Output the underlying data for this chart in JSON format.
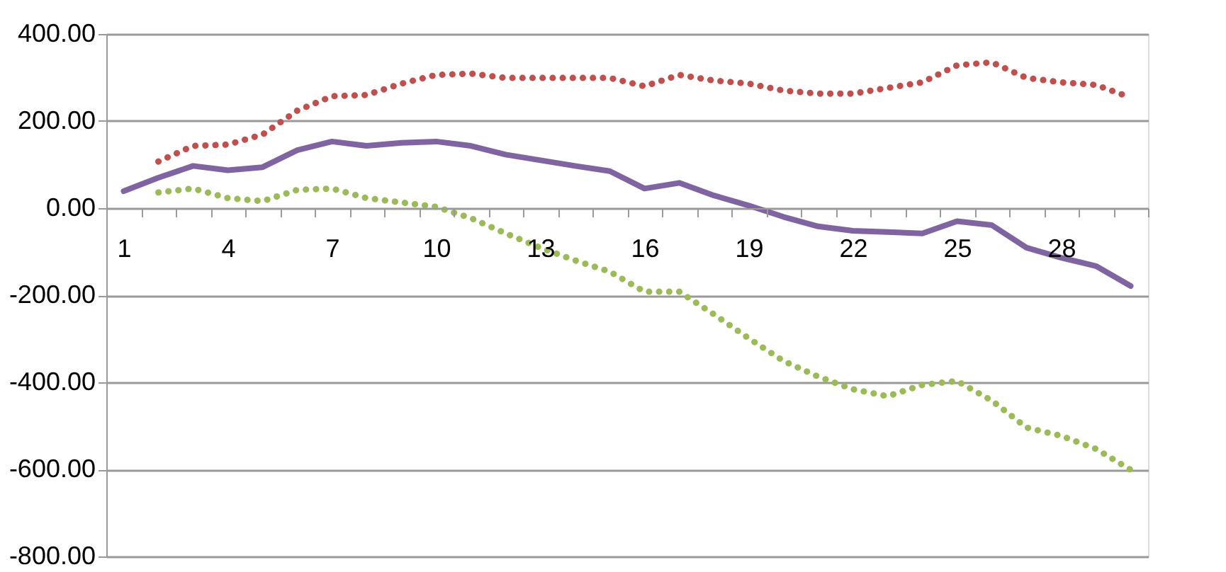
{
  "chart_data": {
    "type": "line",
    "categories": [
      "1",
      null,
      null,
      "4",
      null,
      null,
      "7",
      null,
      null,
      "10",
      null,
      null,
      "13",
      null,
      null,
      "16",
      null,
      null,
      "19",
      null,
      null,
      "22",
      null,
      null,
      "25",
      null,
      null,
      "28",
      null,
      null
    ],
    "series": [
      {
        "color": "#8064a2",
        "line_style": "solid",
        "values": [
          39,
          70,
          97,
          87,
          94,
          133,
          153,
          143,
          150,
          153,
          143,
          123,
          110,
          97,
          85,
          45,
          58,
          29,
          6,
          -20,
          -42,
          -52,
          -55,
          -58,
          -30,
          -39,
          -91,
          -114,
          -133,
          -179
        ]
      },
      {
        "color": "#c0504d",
        "line_style": "dotted",
        "values": [
          null,
          107,
          143,
          146,
          169,
          224,
          257,
          260,
          286,
          306,
          309,
          299,
          299,
          299,
          299,
          280,
          306,
          293,
          286,
          270,
          263,
          263,
          276,
          289,
          328,
          335,
          299,
          289,
          283,
          254
        ]
      },
      {
        "color": "#9bbb59",
        "line_style": "dotted",
        "values": [
          null,
          36,
          45,
          23,
          16,
          42,
          45,
          23,
          13,
          3,
          -23,
          -58,
          -91,
          -120,
          -146,
          -192,
          -192,
          -244,
          -299,
          -351,
          -387,
          -416,
          -432,
          -406,
          -397,
          -442,
          -504,
          -523,
          -553,
          -601
        ]
      }
    ],
    "ylim": [
      -800,
      400
    ],
    "yticks": [
      {
        "value": 400,
        "label": "400.00"
      },
      {
        "value": 200,
        "label": "200.00"
      },
      {
        "value": 0,
        "label": "0.00"
      },
      {
        "value": -200,
        "label": "-200.00"
      },
      {
        "value": -400,
        "label": "-400.00"
      },
      {
        "value": -600,
        "label": "-600.00"
      },
      {
        "value": -800,
        "label": "-800.00"
      }
    ],
    "grid": "y",
    "marker": "none"
  }
}
